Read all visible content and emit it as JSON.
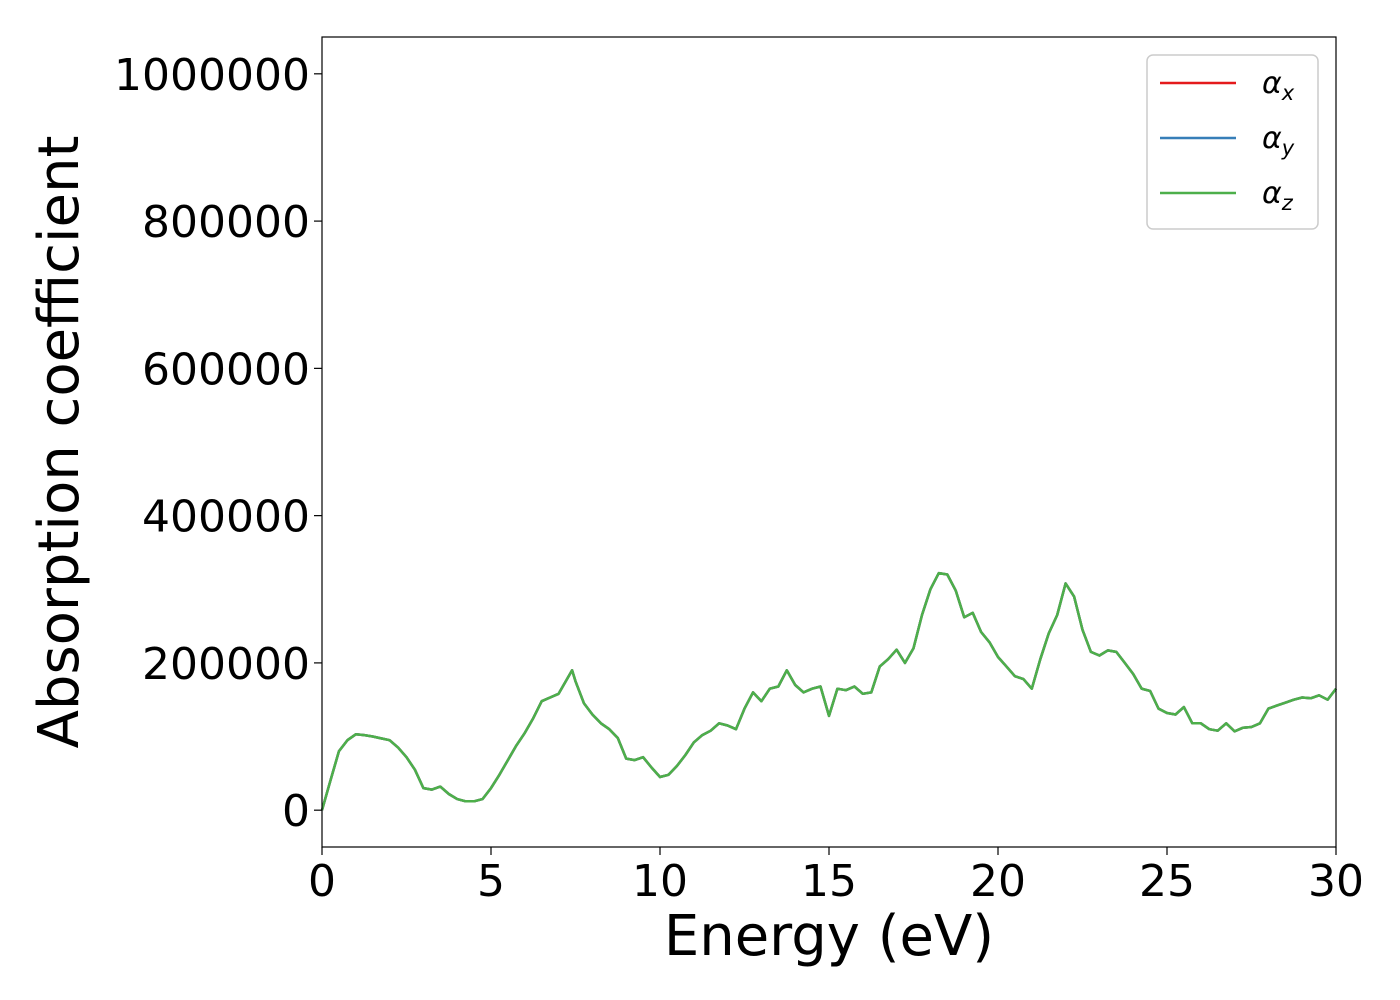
{
  "chart_data": {
    "type": "line",
    "title": "",
    "xlabel": "Energy (eV)",
    "ylabel": "Absorption coefficient",
    "xlim": [
      0,
      30
    ],
    "ylim": [
      -50000,
      1050000
    ],
    "xticks": [
      0,
      5,
      10,
      15,
      20,
      25,
      30
    ],
    "xtick_labels": [
      "0",
      "5",
      "10",
      "15",
      "20",
      "25",
      "30"
    ],
    "yticks": [
      0,
      200000,
      400000,
      600000,
      800000,
      1000000
    ],
    "ytick_labels": [
      "0",
      "200000",
      "400000",
      "600000",
      "800000",
      "1000000"
    ],
    "grid": false,
    "legend_position": "top-right",
    "x": [
      0,
      0.25,
      0.5,
      0.75,
      1.0,
      1.25,
      1.5,
      2.0,
      2.25,
      2.5,
      2.75,
      3.0,
      3.25,
      3.5,
      3.75,
      4.0,
      4.25,
      4.5,
      4.75,
      5.0,
      5.25,
      5.5,
      5.75,
      6.0,
      6.25,
      6.5,
      6.75,
      7.0,
      7.25,
      7.4,
      7.5,
      7.75,
      8.0,
      8.25,
      8.5,
      8.75,
      9.0,
      9.25,
      9.5,
      9.75,
      10.0,
      10.25,
      10.5,
      10.75,
      11.0,
      11.25,
      11.5,
      11.75,
      12.0,
      12.25,
      12.5,
      12.75,
      13.0,
      13.25,
      13.5,
      13.75,
      14.0,
      14.25,
      14.5,
      14.75,
      15.0,
      15.25,
      15.5,
      15.75,
      16.0,
      16.25,
      16.5,
      16.75,
      17.0,
      17.25,
      17.5,
      17.75,
      18.0,
      18.25,
      18.5,
      18.75,
      19.0,
      19.25,
      19.5,
      19.75,
      20.0,
      20.25,
      20.5,
      20.75,
      21.0,
      21.25,
      21.5,
      21.75,
      22.0,
      22.25,
      22.5,
      22.75,
      23.0,
      23.25,
      23.5,
      23.75,
      24.0,
      24.25,
      24.5,
      24.75,
      25.0,
      25.25,
      25.5,
      25.75,
      26.0,
      26.25,
      26.5,
      26.75,
      27.0,
      27.25,
      27.5,
      27.75,
      28.0,
      28.25,
      28.5,
      28.75,
      29.0,
      29.25,
      29.5,
      29.75,
      30.0
    ],
    "series": [
      {
        "name": "α_x",
        "label_main": "α",
        "label_sub": "x",
        "color": "#e41a1c",
        "values": [
          0,
          40000,
          80000,
          95000,
          103000,
          102000,
          100000,
          95000,
          85000,
          72000,
          55000,
          30000,
          28000,
          32000,
          22000,
          15000,
          12000,
          12000,
          15000,
          30000,
          48000,
          68000,
          88000,
          105000,
          125000,
          148000,
          153000,
          158000,
          178000,
          190000,
          175000,
          145000,
          130000,
          118000,
          110000,
          98000,
          70000,
          68000,
          72000,
          58000,
          45000,
          48000,
          60000,
          75000,
          92000,
          102000,
          108000,
          118000,
          115000,
          110000,
          138000,
          160000,
          148000,
          165000,
          168000,
          190000,
          170000,
          160000,
          165000,
          168000,
          128000,
          165000,
          163000,
          168000,
          158000,
          160000,
          195000,
          205000,
          218000,
          200000,
          220000,
          265000,
          300000,
          322000,
          320000,
          298000,
          262000,
          268000,
          242000,
          228000,
          208000,
          195000,
          182000,
          178000,
          165000,
          205000,
          240000,
          265000,
          308000,
          290000,
          245000,
          215000,
          210000,
          217000,
          215000,
          200000,
          185000,
          165000,
          162000,
          138000,
          132000,
          130000,
          140000,
          118000,
          118000,
          110000,
          108000,
          118000,
          107000,
          112000,
          113000,
          118000,
          138000,
          142000,
          146000,
          150000,
          153000,
          152000,
          156000,
          150000,
          165000
        ]
      },
      {
        "name": "α_y",
        "label_main": "α",
        "label_sub": "y",
        "color": "#377eb8",
        "values": [
          0,
          40000,
          80000,
          95000,
          103000,
          102000,
          100000,
          95000,
          85000,
          72000,
          55000,
          30000,
          28000,
          32000,
          22000,
          15000,
          12000,
          12000,
          15000,
          30000,
          48000,
          68000,
          88000,
          105000,
          125000,
          148000,
          153000,
          158000,
          178000,
          190000,
          175000,
          145000,
          130000,
          118000,
          110000,
          98000,
          70000,
          68000,
          72000,
          58000,
          45000,
          48000,
          60000,
          75000,
          92000,
          102000,
          108000,
          118000,
          115000,
          110000,
          138000,
          160000,
          148000,
          165000,
          168000,
          190000,
          170000,
          160000,
          165000,
          168000,
          128000,
          165000,
          163000,
          168000,
          158000,
          160000,
          195000,
          205000,
          218000,
          200000,
          220000,
          265000,
          300000,
          322000,
          320000,
          298000,
          262000,
          268000,
          242000,
          228000,
          208000,
          195000,
          182000,
          178000,
          165000,
          205000,
          240000,
          265000,
          308000,
          290000,
          245000,
          215000,
          210000,
          217000,
          215000,
          200000,
          185000,
          165000,
          162000,
          138000,
          132000,
          130000,
          140000,
          118000,
          118000,
          110000,
          108000,
          118000,
          107000,
          112000,
          113000,
          118000,
          138000,
          142000,
          146000,
          150000,
          153000,
          152000,
          156000,
          150000,
          165000
        ]
      },
      {
        "name": "α_z",
        "label_main": "α",
        "label_sub": "z",
        "color": "#4daf4a",
        "values": [
          0,
          40000,
          80000,
          95000,
          103000,
          102000,
          100000,
          95000,
          85000,
          72000,
          55000,
          30000,
          28000,
          32000,
          22000,
          15000,
          12000,
          12000,
          15000,
          30000,
          48000,
          68000,
          88000,
          105000,
          125000,
          148000,
          153000,
          158000,
          178000,
          190000,
          175000,
          145000,
          130000,
          118000,
          110000,
          98000,
          70000,
          68000,
          72000,
          58000,
          45000,
          48000,
          60000,
          75000,
          92000,
          102000,
          108000,
          118000,
          115000,
          110000,
          138000,
          160000,
          148000,
          165000,
          168000,
          190000,
          170000,
          160000,
          165000,
          168000,
          128000,
          165000,
          163000,
          168000,
          158000,
          160000,
          195000,
          205000,
          218000,
          200000,
          220000,
          265000,
          300000,
          322000,
          320000,
          298000,
          262000,
          268000,
          242000,
          228000,
          208000,
          195000,
          182000,
          178000,
          165000,
          205000,
          240000,
          265000,
          308000,
          290000,
          245000,
          215000,
          210000,
          217000,
          215000,
          200000,
          185000,
          165000,
          162000,
          138000,
          132000,
          130000,
          140000,
          118000,
          118000,
          110000,
          108000,
          118000,
          107000,
          112000,
          113000,
          118000,
          138000,
          142000,
          146000,
          150000,
          153000,
          152000,
          156000,
          150000,
          165000
        ]
      }
    ]
  }
}
